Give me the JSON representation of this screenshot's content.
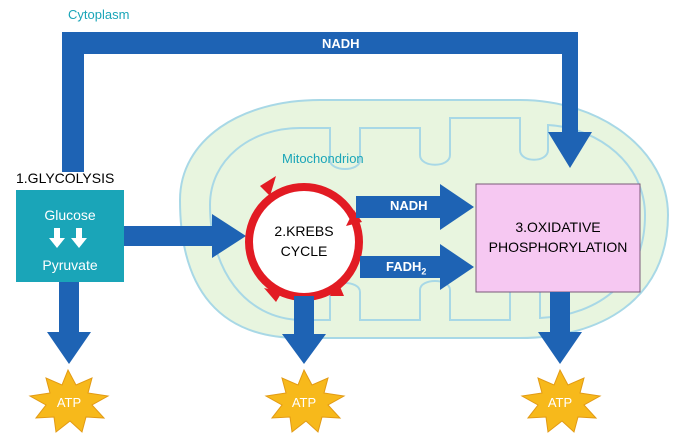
{
  "labels": {
    "cytoplasm": "Cytoplasm",
    "mitochondrion": "Mitochondrion",
    "glycolysis_title": "1.GLYCOLYSIS",
    "glucose": "Glucose",
    "pyruvate": "Pyruvate",
    "krebs_line1": "2.KREBS",
    "krebs_line2": "CYCLE",
    "oxphos_line1": "3.OXIDATIVE",
    "oxphos_line2": "PHOSPHORYLATION",
    "nadh_top": "NADH",
    "nadh_mid": "NADH",
    "fadh_main": "FADH",
    "fadh_sub": "2",
    "atp_left": "ATP",
    "atp_center": "ATP",
    "atp_right": "ATP"
  },
  "colors": {
    "arrow_blue": "#1e63b4",
    "teal_box": "#1aa5b8",
    "mito_fill": "#e8f5df",
    "mito_stroke": "#a8d8e6",
    "oxphos_fill": "#f6c8f2",
    "krebs_ring": "#e21b23",
    "atp_burst": "#f7b91b",
    "text_teal": "#1aa5b8"
  }
}
